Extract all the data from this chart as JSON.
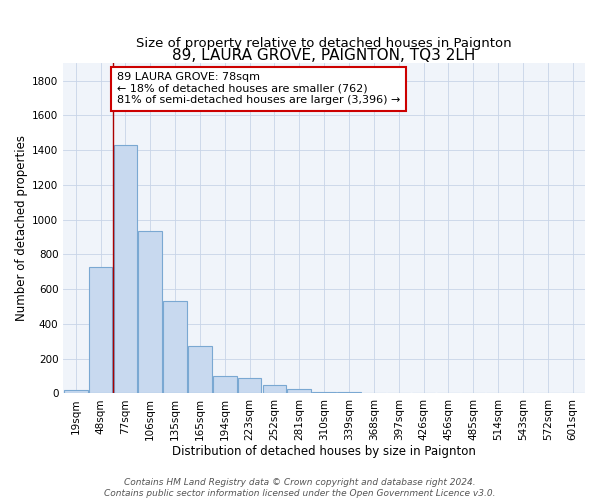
{
  "title": "89, LAURA GROVE, PAIGNTON, TQ3 2LH",
  "subtitle": "Size of property relative to detached houses in Paignton",
  "xlabel": "Distribution of detached houses by size in Paignton",
  "ylabel": "Number of detached properties",
  "bar_labels": [
    "19sqm",
    "48sqm",
    "77sqm",
    "106sqm",
    "135sqm",
    "165sqm",
    "194sqm",
    "223sqm",
    "252sqm",
    "281sqm",
    "310sqm",
    "339sqm",
    "368sqm",
    "397sqm",
    "426sqm",
    "456sqm",
    "485sqm",
    "514sqm",
    "543sqm",
    "572sqm",
    "601sqm"
  ],
  "bar_values": [
    20,
    730,
    1430,
    935,
    530,
    270,
    100,
    90,
    50,
    25,
    10,
    5,
    2,
    1,
    0,
    0,
    0,
    0,
    0,
    0,
    0
  ],
  "bar_facecolor": "#c8d9ef",
  "bar_edgecolor": "#7aa8d2",
  "vline_color": "#aa0000",
  "annotation_line1": "89 LAURA GROVE: 78sqm",
  "annotation_line2": "← 18% of detached houses are smaller (762)",
  "annotation_line3": "81% of semi-detached houses are larger (3,396) →",
  "annotation_box_color": "#ffffff",
  "annotation_box_edge": "#cc0000",
  "ylim": [
    0,
    1900
  ],
  "yticks": [
    0,
    200,
    400,
    600,
    800,
    1000,
    1200,
    1400,
    1600,
    1800
  ],
  "footer1": "Contains HM Land Registry data © Crown copyright and database right 2024.",
  "footer2": "Contains public sector information licensed under the Open Government Licence v3.0.",
  "title_fontsize": 11,
  "subtitle_fontsize": 9.5,
  "axis_label_fontsize": 8.5,
  "tick_fontsize": 7.5,
  "annotation_fontsize": 8,
  "footer_fontsize": 6.5,
  "vline_bar_index": 2
}
